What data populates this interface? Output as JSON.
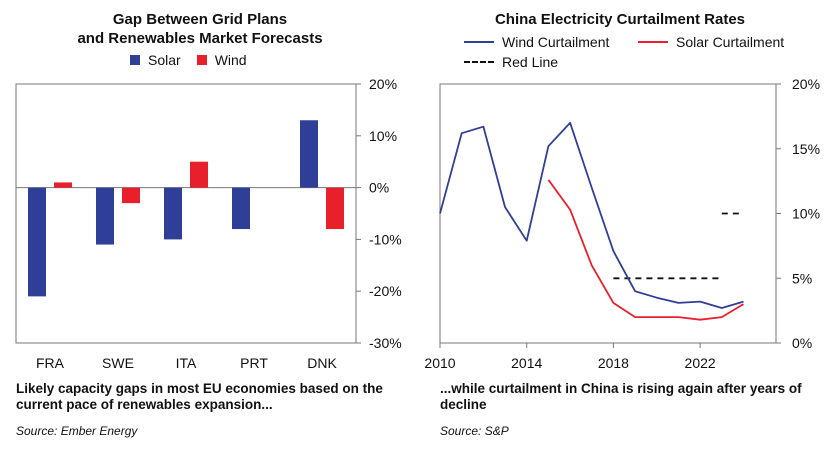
{
  "colors": {
    "solar": "#2f3f97",
    "wind": "#e8202b",
    "wind_curtailment": "#2f3f97",
    "solar_curtailment": "#e8202b",
    "red_line": "#111111"
  },
  "chart_data": [
    {
      "type": "bar",
      "title_line1": "Gap Between Grid Plans",
      "title_line2": "and Renewables Market Forecasts",
      "categories": [
        "FRA",
        "SWE",
        "ITA",
        "PRT",
        "DNK"
      ],
      "series": [
        {
          "name": "Solar",
          "values": [
            -21,
            -11,
            -10,
            -8,
            13
          ]
        },
        {
          "name": "Wind",
          "values": [
            1,
            -3,
            5,
            null,
            -8
          ]
        }
      ],
      "ylim": [
        -30,
        20
      ],
      "yticks": [
        20,
        10,
        0,
        -10,
        -20,
        -30
      ],
      "ytick_labels": [
        "20%",
        "10%",
        "0%",
        "-10%",
        "-20%",
        "-30%"
      ],
      "caption": "Likely capacity gaps in most EU economies based on the current pace of renewables expansion...",
      "source": "Source: Ember Energy"
    },
    {
      "type": "line",
      "title": "China Electricity Curtailment Rates",
      "series": [
        {
          "name": "Wind Curtailment",
          "x": [
            2010,
            2011,
            2012,
            2013,
            2014,
            2015,
            2016,
            2017,
            2018,
            2019,
            2020,
            2021,
            2022,
            2023,
            2024
          ],
          "y": [
            10,
            16.2,
            16.7,
            10.5,
            7.9,
            15.2,
            17,
            12,
            7.1,
            4,
            3.5,
            3.1,
            3.2,
            2.7,
            3.2
          ]
        },
        {
          "name": "Solar Curtailment",
          "x": [
            2015,
            2016,
            2017,
            2018,
            2019,
            2020,
            2021,
            2022,
            2023,
            2024
          ],
          "y": [
            12.6,
            10.3,
            6,
            3.1,
            2,
            2,
            2,
            1.8,
            2,
            3
          ]
        },
        {
          "name": "Red Line",
          "segments": [
            {
              "x": [
                2018,
                2023
              ],
              "y": [
                5,
                5
              ]
            },
            {
              "x": [
                2023,
                2024
              ],
              "y": [
                10,
                10
              ]
            }
          ]
        }
      ],
      "xlim": [
        2010,
        2025.5
      ],
      "xticks": [
        2010,
        2014,
        2018,
        2022
      ],
      "ylim": [
        0,
        20
      ],
      "yticks": [
        20,
        15,
        10,
        5,
        0
      ],
      "ytick_labels": [
        "20%",
        "15%",
        "10%",
        "5%",
        "0%"
      ],
      "caption": "...while curtailment in China is rising again after years of decline",
      "source": "Source: S&P"
    }
  ]
}
